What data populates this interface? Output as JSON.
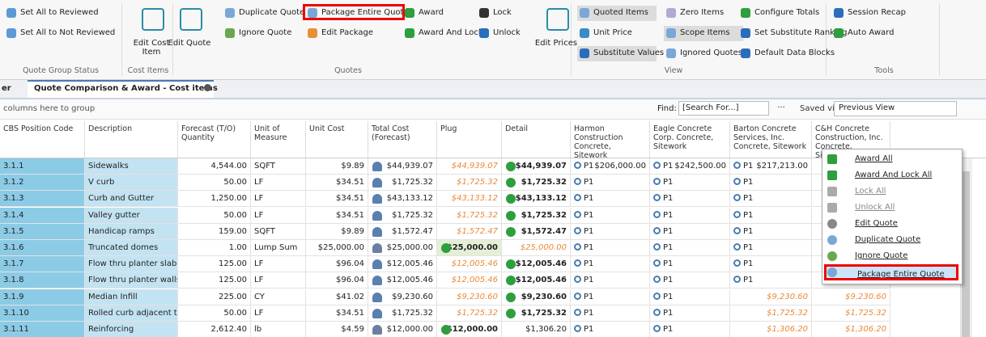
{
  "ribbon": {
    "groups": [
      {
        "label": "Quote Group Status",
        "items": [
          "Set All to Reviewed",
          "Set All to Not Reviewed"
        ]
      },
      {
        "label": "Cost Items",
        "items": [
          "Edit Cost Item"
        ]
      },
      {
        "label": "Quotes",
        "items": [
          "Edit Quote",
          "Duplicate Quote",
          "Ignore Quote",
          "Package Entire Quote",
          "Edit Package",
          "Award",
          "Award And Lock",
          "Lock",
          "Unlock",
          "Edit Prices"
        ]
      },
      {
        "label": "View",
        "items": [
          "Quoted Items",
          "Unit Price",
          "Substitute Values",
          "Zero Items",
          "Scope Items",
          "Ignored Quotes",
          "Configure Totals",
          "Set Substitute Ranking",
          "Default Data Blocks"
        ]
      },
      {
        "label": "Tools",
        "items": [
          "Session Recap",
          "Auto Award"
        ]
      }
    ]
  },
  "tabs": [
    "er",
    "Quote Comparison & Award - Cost items"
  ],
  "group_hint": "columns here to group",
  "find_label": "Find:",
  "find_placeholder": "[Search For...]",
  "find_button": "...",
  "saved_views_label": "Saved views:",
  "saved_view": "Previous View",
  "table": {
    "columns": [
      "CBS Position Code",
      "Description",
      "Forecast (T/O) Quantity",
      "Unit of Measure",
      "Unit Cost",
      "Total Cost (Forecast)",
      "Plug",
      "Detail",
      "Harmon Construction Concrete, Sitework",
      "Eagle Concrete Corp. Concrete, Sitework",
      "Barton Concrete Services, Inc. Concrete, Sitework",
      "C&H Concrete Construction, Inc. Concrete, Sitework"
    ],
    "rows": [
      {
        "code": "3.1.1",
        "description": "Sidewalks",
        "quantity": "4,544.00",
        "uom": "SQFT",
        "unit_cost": "$9.89",
        "total_cost": "$44,939.07",
        "plug": "$44,939.07",
        "detail": "$44,939.07",
        "award": "detail",
        "quotes": [
          {
            "tag": "P1",
            "amount": "$206,000.00"
          },
          {
            "tag": "P1",
            "amount": "$242,500.00"
          },
          {
            "tag": "P1",
            "amount": "$217,213.00"
          },
          null
        ]
      },
      {
        "code": "3.1.2",
        "description": "V curb",
        "quantity": "50.00",
        "uom": "LF",
        "unit_cost": "$34.51",
        "total_cost": "$1,725.32",
        "plug": "$1,725.32",
        "detail": "$1,725.32",
        "award": "detail",
        "quotes": [
          {
            "tag": "P1"
          },
          {
            "tag": "P1"
          },
          {
            "tag": "P1"
          },
          null
        ]
      },
      {
        "code": "3.1.3",
        "description": "Curb and Gutter",
        "quantity": "1,250.00",
        "uom": "LF",
        "unit_cost": "$34.51",
        "total_cost": "$43,133.12",
        "plug": "$43,133.12",
        "detail": "$43,133.12",
        "award": "detail",
        "quotes": [
          {
            "tag": "P1"
          },
          {
            "tag": "P1"
          },
          {
            "tag": "P1"
          },
          null
        ]
      },
      {
        "code": "3.1.4",
        "description": "Valley gutter",
        "quantity": "50.00",
        "uom": "LF",
        "unit_cost": "$34.51",
        "total_cost": "$1,725.32",
        "plug": "$1,725.32",
        "detail": "$1,725.32",
        "award": "detail",
        "quotes": [
          {
            "tag": "P1"
          },
          {
            "tag": "P1"
          },
          {
            "tag": "P1"
          },
          null
        ]
      },
      {
        "code": "3.1.5",
        "description": "Handicap ramps",
        "quantity": "159.00",
        "uom": "SQFT",
        "unit_cost": "$9.89",
        "total_cost": "$1,572.47",
        "plug": "$1,572.47",
        "detail": "$1,572.47",
        "award": "detail",
        "quotes": [
          {
            "tag": "P1"
          },
          {
            "tag": "P1"
          },
          {
            "tag": "P1"
          },
          null
        ]
      },
      {
        "code": "3.1.6",
        "description": "Truncated domes",
        "quantity": "1.00",
        "uom": "Lump Sum",
        "unit_cost": "$25,000.00",
        "total_cost": "$25,000.00",
        "plug": "$25,000.00",
        "detail": "$25,000.00",
        "award": "plug",
        "quotes": [
          {
            "tag": "P1"
          },
          {
            "tag": "P1"
          },
          {
            "tag": "P1"
          },
          null
        ]
      },
      {
        "code": "3.1.7",
        "description": "Flow thru planter slab",
        "quantity": "125.00",
        "uom": "LF",
        "unit_cost": "$96.04",
        "total_cost": "$12,005.46",
        "plug": "$12,005.46",
        "detail": "$12,005.46",
        "award": "detail",
        "quotes": [
          {
            "tag": "P1"
          },
          {
            "tag": "P1"
          },
          {
            "tag": "P1"
          },
          null
        ]
      },
      {
        "code": "3.1.8",
        "description": "Flow thru planter walls",
        "quantity": "125.00",
        "uom": "LF",
        "unit_cost": "$96.04",
        "total_cost": "$12,005.46",
        "plug": "$12,005.46",
        "detail": "$12,005.46",
        "award": "detail",
        "quotes": [
          {
            "tag": "P1"
          },
          {
            "tag": "P1"
          },
          {
            "tag": "P1"
          },
          null
        ]
      },
      {
        "code": "3.1.9",
        "description": "Median Infill",
        "quantity": "225.00",
        "uom": "CY",
        "unit_cost": "$41.02",
        "total_cost": "$9,230.60",
        "plug": "$9,230.60",
        "detail": "$9,230.60",
        "award": "detail",
        "quotes": [
          {
            "tag": "P1"
          },
          {
            "tag": "P1"
          },
          {
            "amount": "$9,230.60"
          },
          {
            "amount": "$9,230.60"
          }
        ]
      },
      {
        "code": "3.1.10",
        "description": "Rolled curb adjacent to...",
        "quantity": "50.00",
        "uom": "LF",
        "unit_cost": "$34.51",
        "total_cost": "$1,725.32",
        "plug": "$1,725.32",
        "detail": "$1,725.32",
        "award": "detail",
        "quotes": [
          {
            "tag": "P1"
          },
          {
            "tag": "P1"
          },
          {
            "amount": "$1,725.32"
          },
          {
            "amount": "$1,725.32"
          }
        ]
      },
      {
        "code": "3.1.11",
        "description": "Reinforcing",
        "quantity": "2,612.40",
        "uom": "lb",
        "unit_cost": "$4.59",
        "total_cost": "$12,000.00",
        "plug": "$12,000.00",
        "detail": "$1,306.20",
        "award": "plug",
        "quotes": [
          {
            "tag": "P1"
          },
          {
            "tag": "P1"
          },
          {
            "amount": "$1,306.20"
          },
          {
            "amount": "$1,306.20"
          }
        ]
      }
    ]
  },
  "context_menu": {
    "items": [
      "Award All",
      "Award And Lock All",
      "Lock All",
      "Unlock All",
      "Edit Quote",
      "Duplicate Quote",
      "Ignore Quote",
      "Package Entire Quote"
    ]
  }
}
